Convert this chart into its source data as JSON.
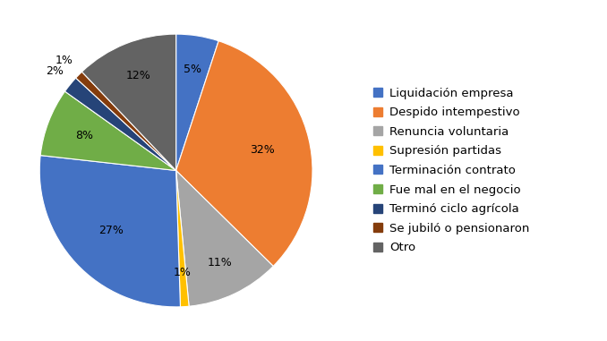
{
  "labels": [
    "Liquidación empresa",
    "Despido intempestivo",
    "Renuncia voluntaria",
    "Supresión partidas",
    "Terminación contrato",
    "Fue mal en el negocio",
    "Terminó ciclo agrícola",
    "Se jubiló o pensionaron",
    "Otro"
  ],
  "values": [
    5,
    32,
    11,
    1,
    27,
    8,
    2,
    1,
    12
  ],
  "colors": [
    "#4472C4",
    "#ED7D31",
    "#A5A5A5",
    "#FFC000",
    "#4472C4",
    "#70AD47",
    "#264478",
    "#843C0C",
    "#636363"
  ],
  "pct_labels": [
    "5%",
    "32%",
    "11%",
    "1%",
    "27%",
    "8%",
    "2%",
    "1%",
    "12%"
  ],
  "pct_distances": [
    0.75,
    0.65,
    0.75,
    0.75,
    0.65,
    0.72,
    1.15,
    1.15,
    0.75
  ],
  "startangle": 90,
  "background_color": "#FFFFFF",
  "legend_fontsize": 9.5,
  "pct_fontsize": 9.0
}
